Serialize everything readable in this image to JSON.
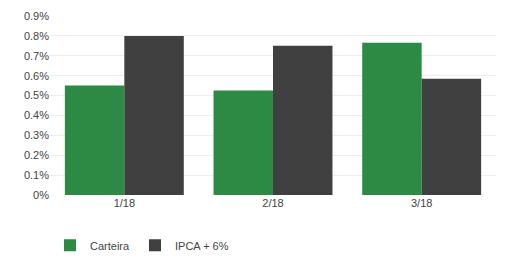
{
  "chart_data": {
    "type": "bar",
    "categories": [
      "1/18",
      "2/18",
      "3/18"
    ],
    "series": [
      {
        "name": "Carteira",
        "color": "#2d8a45",
        "values": [
          0.0055,
          0.00525,
          0.00765
        ]
      },
      {
        "name": "IPCA + 6%",
        "color": "#404040",
        "values": [
          0.008,
          0.0075,
          0.00585
        ]
      }
    ],
    "ylim": [
      0.0,
      0.009
    ],
    "yticks": [
      {
        "value": 0.0,
        "label": "0%"
      },
      {
        "value": 0.001,
        "label": "0.1%"
      },
      {
        "value": 0.002,
        "label": "0.2%"
      },
      {
        "value": 0.003,
        "label": "0.3%"
      },
      {
        "value": 0.004,
        "label": "0.4%"
      },
      {
        "value": 0.005,
        "label": "0.5%"
      },
      {
        "value": 0.006,
        "label": "0.6%"
      },
      {
        "value": 0.007,
        "label": "0.7%"
      },
      {
        "value": 0.008,
        "label": "0.8%"
      },
      {
        "value": 0.009,
        "label": "0.9%"
      }
    ],
    "grid": true,
    "legend": "bottom"
  }
}
